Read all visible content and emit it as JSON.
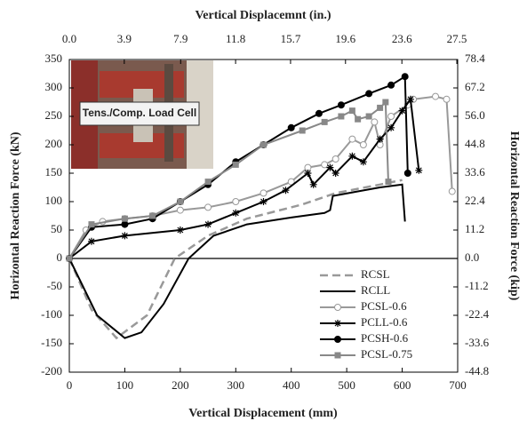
{
  "chart_data": {
    "type": "line",
    "annotation": "Tens./Comp. Load Cell",
    "xlabel": "Vertical Displacement (mm)",
    "x2label": "Vertical Displacemnt  (in.)",
    "ylabel": "Horizontal Reaction Force (kN)",
    "y2label": "Horizontal Reaction Force (kip)",
    "xlim": [
      0,
      700
    ],
    "xticks": [
      0,
      100,
      200,
      300,
      400,
      500,
      600,
      700
    ],
    "x2lim": [
      0,
      27.56
    ],
    "x2ticks": [
      {
        "value": 0,
        "label": "0.0"
      },
      3.9,
      7.9,
      11.8,
      15.7,
      19.6,
      23.6,
      27.5
    ],
    "ylim": [
      -200,
      350
    ],
    "yticks": [
      350,
      300,
      250,
      200,
      150,
      100,
      50,
      0,
      -50,
      -100,
      -150,
      -200
    ],
    "y2lim": [
      -44.8,
      78.4
    ],
    "y2ticks": [
      78.4,
      67.2,
      {
        "value": 56,
        "label": "56.0"
      },
      44.8,
      33.6,
      22.4,
      11.2,
      {
        "value": 0,
        "label": "0.0"
      },
      -11.2,
      -22.4,
      -33.6,
      -44.8
    ],
    "legend": "lower right",
    "series": [
      {
        "name": "RCSL",
        "color": "#999999",
        "dash": true,
        "marker": "none",
        "x": [
          0,
          40,
          85,
          140,
          190,
          250,
          320,
          420,
          480,
          560,
          600
        ],
        "values": [
          0,
          -90,
          -140,
          -100,
          0,
          40,
          70,
          95,
          115,
          130,
          138
        ]
      },
      {
        "name": "RCLL",
        "color": "#000000",
        "dash": false,
        "marker": "none",
        "x": [
          0,
          50,
          100,
          130,
          170,
          215,
          260,
          320,
          400,
          460,
          470,
          475,
          520,
          560,
          600,
          605
        ],
        "values": [
          0,
          -100,
          -140,
          -130,
          -80,
          0,
          40,
          60,
          72,
          80,
          85,
          110,
          118,
          125,
          130,
          65
        ]
      },
      {
        "name": "PCSL-0.6",
        "color": "#999999",
        "dash": false,
        "marker": "circle-open",
        "x": [
          0,
          30,
          60,
          100,
          150,
          200,
          250,
          300,
          350,
          400,
          430,
          460,
          480,
          510,
          530,
          550,
          560,
          580,
          610,
          620,
          660,
          680,
          690
        ],
        "values": [
          0,
          50,
          65,
          70,
          75,
          85,
          90,
          100,
          115,
          135,
          160,
          165,
          175,
          210,
          200,
          240,
          200,
          250,
          270,
          280,
          285,
          280,
          118
        ]
      },
      {
        "name": "PCLL-0.6",
        "color": "#000000",
        "dash": false,
        "marker": "star",
        "x": [
          0,
          40,
          100,
          200,
          250,
          300,
          350,
          390,
          430,
          440,
          470,
          480,
          510,
          530,
          560,
          580,
          600,
          615,
          630
        ],
        "values": [
          0,
          30,
          40,
          50,
          60,
          80,
          100,
          120,
          150,
          130,
          160,
          150,
          180,
          170,
          210,
          230,
          260,
          280,
          155
        ]
      },
      {
        "name": "PCSH-0.6",
        "color": "#000000",
        "dash": false,
        "marker": "circle",
        "x": [
          0,
          40,
          100,
          150,
          200,
          250,
          300,
          350,
          400,
          450,
          490,
          540,
          580,
          605,
          610
        ],
        "values": [
          0,
          55,
          60,
          70,
          100,
          130,
          170,
          200,
          230,
          255,
          270,
          290,
          305,
          320,
          150
        ]
      },
      {
        "name": "PCSL-0.75",
        "color": "#888888",
        "dash": false,
        "marker": "square",
        "x": [
          0,
          40,
          100,
          150,
          200,
          250,
          300,
          350,
          420,
          460,
          490,
          510,
          520,
          540,
          560,
          570,
          575
        ],
        "values": [
          0,
          60,
          70,
          75,
          100,
          135,
          165,
          200,
          225,
          240,
          250,
          260,
          245,
          250,
          265,
          275,
          135
        ]
      }
    ]
  }
}
